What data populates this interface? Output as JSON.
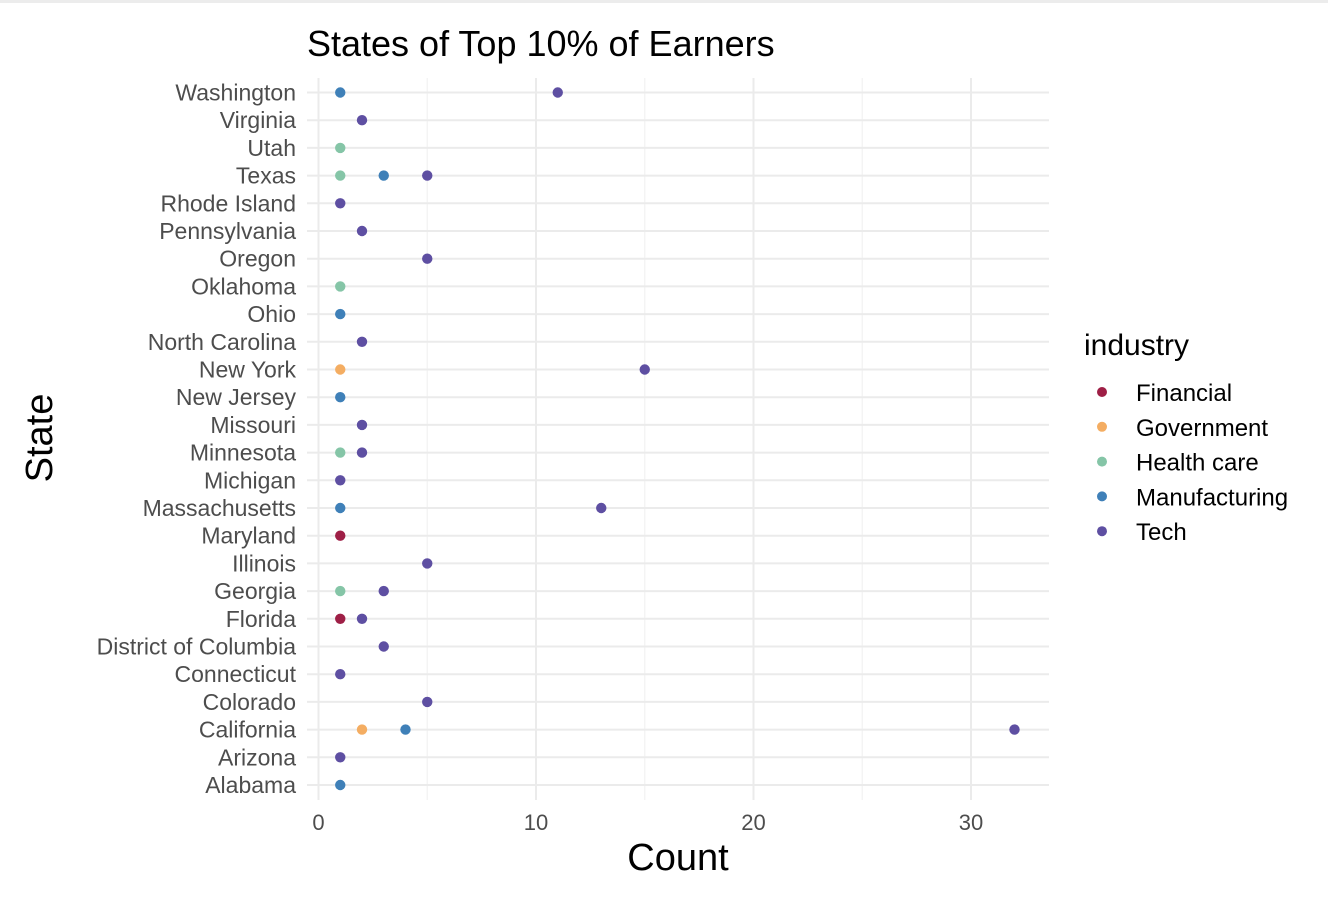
{
  "chart_data": {
    "type": "scatter",
    "title": "States of Top 10% of Earners",
    "xlabel": "Count",
    "ylabel": "State",
    "xlim": [
      0,
      33.5
    ],
    "x_ticks": [
      0,
      10,
      20,
      30
    ],
    "grid": true,
    "legend_title": "industry",
    "legend_position": "right",
    "categories": [
      "Alabama",
      "Arizona",
      "California",
      "Colorado",
      "Connecticut",
      "District of Columbia",
      "Florida",
      "Georgia",
      "Illinois",
      "Maryland",
      "Massachusetts",
      "Michigan",
      "Minnesota",
      "Missouri",
      "New Jersey",
      "New York",
      "North Carolina",
      "Ohio",
      "Oklahoma",
      "Oregon",
      "Pennsylvania",
      "Rhode Island",
      "Texas",
      "Utah",
      "Virginia",
      "Washington"
    ],
    "series": [
      {
        "name": "Financial",
        "color": "#9e1f46",
        "points": [
          {
            "state": "Maryland",
            "x": 1
          },
          {
            "state": "Florida",
            "x": 1
          }
        ]
      },
      {
        "name": "Government",
        "color": "#f4ad62",
        "points": [
          {
            "state": "New York",
            "x": 1
          },
          {
            "state": "California",
            "x": 2
          }
        ]
      },
      {
        "name": "Health care",
        "color": "#85c5a7",
        "points": [
          {
            "state": "Utah",
            "x": 1
          },
          {
            "state": "Texas",
            "x": 1
          },
          {
            "state": "Oklahoma",
            "x": 1
          },
          {
            "state": "Minnesota",
            "x": 1
          },
          {
            "state": "Georgia",
            "x": 1
          }
        ]
      },
      {
        "name": "Manufacturing",
        "color": "#3f80b8",
        "points": [
          {
            "state": "Washington",
            "x": 1
          },
          {
            "state": "Texas",
            "x": 3
          },
          {
            "state": "Ohio",
            "x": 1
          },
          {
            "state": "New Jersey",
            "x": 1
          },
          {
            "state": "Massachusetts",
            "x": 1
          },
          {
            "state": "California",
            "x": 4
          },
          {
            "state": "Alabama",
            "x": 1
          }
        ]
      },
      {
        "name": "Tech",
        "color": "#5e4fa2",
        "points": [
          {
            "state": "Washington",
            "x": 11
          },
          {
            "state": "Virginia",
            "x": 2
          },
          {
            "state": "Texas",
            "x": 5
          },
          {
            "state": "Rhode Island",
            "x": 1
          },
          {
            "state": "Pennsylvania",
            "x": 2
          },
          {
            "state": "Oregon",
            "x": 5
          },
          {
            "state": "North Carolina",
            "x": 2
          },
          {
            "state": "New York",
            "x": 15
          },
          {
            "state": "Missouri",
            "x": 2
          },
          {
            "state": "Minnesota",
            "x": 2
          },
          {
            "state": "Michigan",
            "x": 1
          },
          {
            "state": "Massachusetts",
            "x": 13
          },
          {
            "state": "Illinois",
            "x": 5
          },
          {
            "state": "Georgia",
            "x": 3
          },
          {
            "state": "Florida",
            "x": 2
          },
          {
            "state": "District of Columbia",
            "x": 3
          },
          {
            "state": "Connecticut",
            "x": 1
          },
          {
            "state": "Colorado",
            "x": 5
          },
          {
            "state": "California",
            "x": 32
          },
          {
            "state": "Arizona",
            "x": 1
          }
        ]
      }
    ]
  }
}
